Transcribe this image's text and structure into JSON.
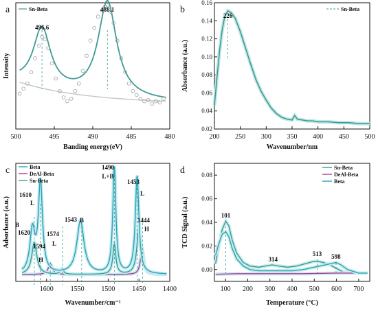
{
  "chart_data": [
    {
      "panel": "a",
      "type": "scatter",
      "xlabel": "Banding energy(eV)",
      "ylabel": "Intensity",
      "xlim": [
        500,
        480
      ],
      "ylim": [
        0,
        1
      ],
      "reversed_x": true,
      "xticks": [
        500,
        495,
        490,
        485,
        480
      ],
      "legend": {
        "labels": [
          "Sn-Beta"
        ],
        "position": "top-left"
      },
      "peaks": [
        {
          "x": 496.6,
          "label": "496.6"
        },
        {
          "x": 488.1,
          "label": "488.1"
        }
      ],
      "series": [
        {
          "name": "Sn-Beta",
          "kind": "points",
          "color": "#9e9e9e",
          "x": [
            499.5,
            499.0,
            498.5,
            498.0,
            497.5,
            497.0,
            496.6,
            496.2,
            495.8,
            495.3,
            494.8,
            494.3,
            493.8,
            493.3,
            492.8,
            492.3,
            491.8,
            491.3,
            490.8,
            490.3,
            489.8,
            489.3,
            488.8,
            488.4,
            488.1,
            487.7,
            487.3,
            486.8,
            486.3,
            485.8,
            485.3,
            484.8,
            484.3,
            483.8,
            483.3,
            482.8,
            482.3,
            481.8,
            481.3,
            480.8
          ],
          "y": [
            0.28,
            0.32,
            0.36,
            0.45,
            0.56,
            0.66,
            0.73,
            0.71,
            0.64,
            0.52,
            0.4,
            0.3,
            0.25,
            0.22,
            0.24,
            0.3,
            0.36,
            0.46,
            0.58,
            0.7,
            0.8,
            0.89,
            0.94,
            0.97,
            0.98,
            0.93,
            0.84,
            0.7,
            0.56,
            0.45,
            0.36,
            0.3,
            0.27,
            0.24,
            0.22,
            0.23,
            0.2,
            0.22,
            0.21,
            0.24
          ]
        }
      ],
      "fit": {
        "kind": "two-lorentzian",
        "baseline_color": "#c8c8c8",
        "fit_color": "#3a9b94"
      }
    },
    {
      "panel": "b",
      "type": "line",
      "xlabel": "Wavenumber/nm",
      "ylabel": "Absorbance (a.u.)",
      "xlim": [
        200,
        500
      ],
      "ylim": [
        0.02,
        0.16
      ],
      "xticks": [
        200,
        250,
        300,
        350,
        400,
        450,
        500
      ],
      "yticks": [
        0.02,
        0.04,
        0.06,
        0.08,
        0.1,
        0.12,
        0.14,
        0.16
      ],
      "legend": {
        "labels": [
          "Sn-Beta"
        ],
        "position": "top-right"
      },
      "peaks": [
        {
          "x": 226,
          "label": "226"
        }
      ],
      "series": [
        {
          "name": "Sn-Beta",
          "color": "#3a9b94",
          "x": [
            200,
            205,
            210,
            215,
            220,
            226,
            232,
            240,
            250,
            260,
            270,
            280,
            290,
            300,
            310,
            320,
            330,
            340,
            350,
            355,
            360,
            370,
            380,
            390,
            400,
            420,
            440,
            460,
            480,
            500
          ],
          "y": [
            0.046,
            0.078,
            0.107,
            0.13,
            0.145,
            0.151,
            0.149,
            0.143,
            0.128,
            0.11,
            0.092,
            0.075,
            0.062,
            0.052,
            0.043,
            0.037,
            0.033,
            0.031,
            0.03,
            0.035,
            0.031,
            0.03,
            0.029,
            0.029,
            0.028,
            0.028,
            0.027,
            0.027,
            0.026,
            0.026
          ]
        }
      ]
    },
    {
      "panel": "c",
      "type": "line",
      "xlabel": "Wavenumber/cm⁻¹",
      "ylabel": "Adsorbance (a.u.)",
      "xlim": [
        1650,
        1400
      ],
      "reversed_x": true,
      "xticks": [
        1600,
        1550,
        1500,
        1450,
        1400
      ],
      "legend": {
        "labels": [
          "Beta",
          "DeAl-Beta",
          "Sn-Beta"
        ],
        "position": "top-left"
      },
      "annotations": [
        {
          "x": 1620,
          "label": "1620"
        },
        {
          "x": 1620,
          "label": "B"
        },
        {
          "x": 1610,
          "label": "1610"
        },
        {
          "x": 1610,
          "label": "L"
        },
        {
          "x": 1594,
          "label": "1594"
        },
        {
          "x": 1594,
          "label": "H"
        },
        {
          "x": 1574,
          "label": "1574"
        },
        {
          "x": 1574,
          "label": "L"
        },
        {
          "x": 1543,
          "label": "1543"
        },
        {
          "x": 1543,
          "label": "B"
        },
        {
          "x": 1490,
          "label": "1490"
        },
        {
          "x": 1490,
          "label": "L+B"
        },
        {
          "x": 1453,
          "label": "1453"
        },
        {
          "x": 1453,
          "label": "L"
        },
        {
          "x": 1444,
          "label": "1444"
        },
        {
          "x": 1444,
          "label": "H"
        }
      ],
      "series": [
        {
          "name": "Beta",
          "color": "#2aa3b8",
          "peaks": [
            [
              1623,
              0.4,
              5
            ],
            [
              1610,
              0.85,
              4
            ],
            [
              1545,
              0.5,
              7
            ],
            [
              1490,
              1.0,
              3
            ],
            [
              1453,
              0.92,
              3.5
            ]
          ]
        },
        {
          "name": "DeAl-Beta",
          "color": "#b03a9a",
          "peaks": [
            [
              1594,
              0.1,
              4
            ],
            [
              1445,
              0.25,
              3
            ]
          ]
        },
        {
          "name": "Sn-Beta",
          "color": "#3a9b94",
          "peaks": [
            [
              1620,
              0.3,
              5
            ],
            [
              1575,
              0.05,
              3
            ],
            [
              1490,
              0.28,
              3
            ],
            [
              1450,
              0.45,
              4
            ]
          ]
        }
      ]
    },
    {
      "panel": "d",
      "type": "line",
      "xlabel": "Temperature (°C)",
      "ylabel": "TCD Signal (a.u.)",
      "xlim": [
        50,
        750
      ],
      "ylim": [
        -0.01,
        0.09
      ],
      "xticks": [
        100,
        200,
        300,
        400,
        500,
        600,
        700
      ],
      "yticks": [
        0.0,
        0.02,
        0.04,
        0.06,
        0.08
      ],
      "legend": {
        "labels": [
          "Sn-Beta",
          "DeAl-Beta",
          "Beta"
        ],
        "position": "top-right"
      },
      "peaks": [
        {
          "x": 101,
          "label": "101"
        },
        {
          "x": 314,
          "label": "314"
        },
        {
          "x": 513,
          "label": "513"
        },
        {
          "x": 598,
          "label": "598"
        }
      ],
      "series": [
        {
          "name": "Sn-Beta",
          "color": "#3a9b94",
          "x": [
            55,
            70,
            85,
            101,
            115,
            130,
            150,
            180,
            210,
            250,
            280,
            310,
            340,
            380,
            420,
            460,
            500,
            513,
            540,
            570,
            600,
            630,
            660,
            700,
            740
          ],
          "y": [
            0.005,
            0.02,
            0.034,
            0.041,
            0.037,
            0.025,
            0.014,
            0.006,
            0.003,
            0.002,
            0.003,
            0.004,
            0.003,
            0.002,
            0.003,
            0.005,
            0.007,
            0.007,
            0.006,
            0.004,
            0.001,
            -0.002,
            -0.003,
            -0.003,
            -0.003
          ]
        },
        {
          "name": "DeAl-Beta",
          "color": "#b03a9a",
          "x": [
            55,
            150,
            300,
            450,
            600,
            740
          ],
          "y": [
            -0.004,
            -0.0035,
            -0.0035,
            -0.0035,
            -0.003,
            -0.003
          ]
        },
        {
          "name": "Beta",
          "color": "#2aa3b8",
          "x": [
            55,
            70,
            85,
            101,
            115,
            130,
            150,
            180,
            210,
            250,
            300,
            350,
            400,
            450,
            500,
            550,
            598,
            620,
            650,
            700,
            740
          ],
          "y": [
            0.012,
            0.022,
            0.03,
            0.032,
            0.028,
            0.018,
            0.009,
            0.003,
            0.0,
            -0.001,
            -0.001,
            -0.001,
            -0.001,
            0.0,
            0.002,
            0.004,
            0.006,
            0.004,
            0.0,
            -0.003,
            -0.003
          ]
        }
      ]
    }
  ]
}
